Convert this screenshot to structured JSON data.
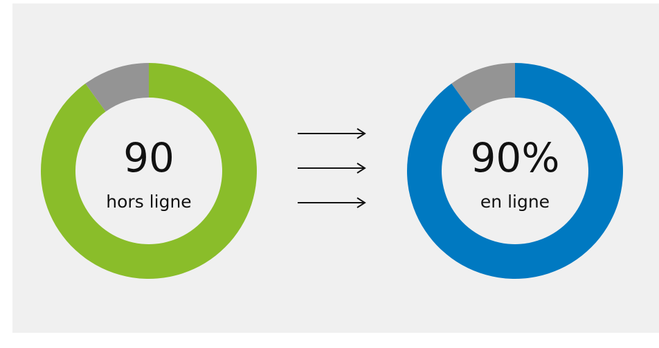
{
  "chart_data": [
    {
      "type": "donut",
      "values": [
        90,
        10
      ],
      "colors": [
        "#8abd2a",
        "#949494"
      ],
      "value_labels": [
        "90",
        null
      ],
      "subtitle": "hors ligne"
    },
    {
      "type": "donut",
      "values": [
        90,
        10
      ],
      "colors": [
        "#0079c1",
        "#949494"
      ],
      "value_labels": [
        "90%",
        null
      ],
      "subtitle": "en ligne"
    }
  ]
}
